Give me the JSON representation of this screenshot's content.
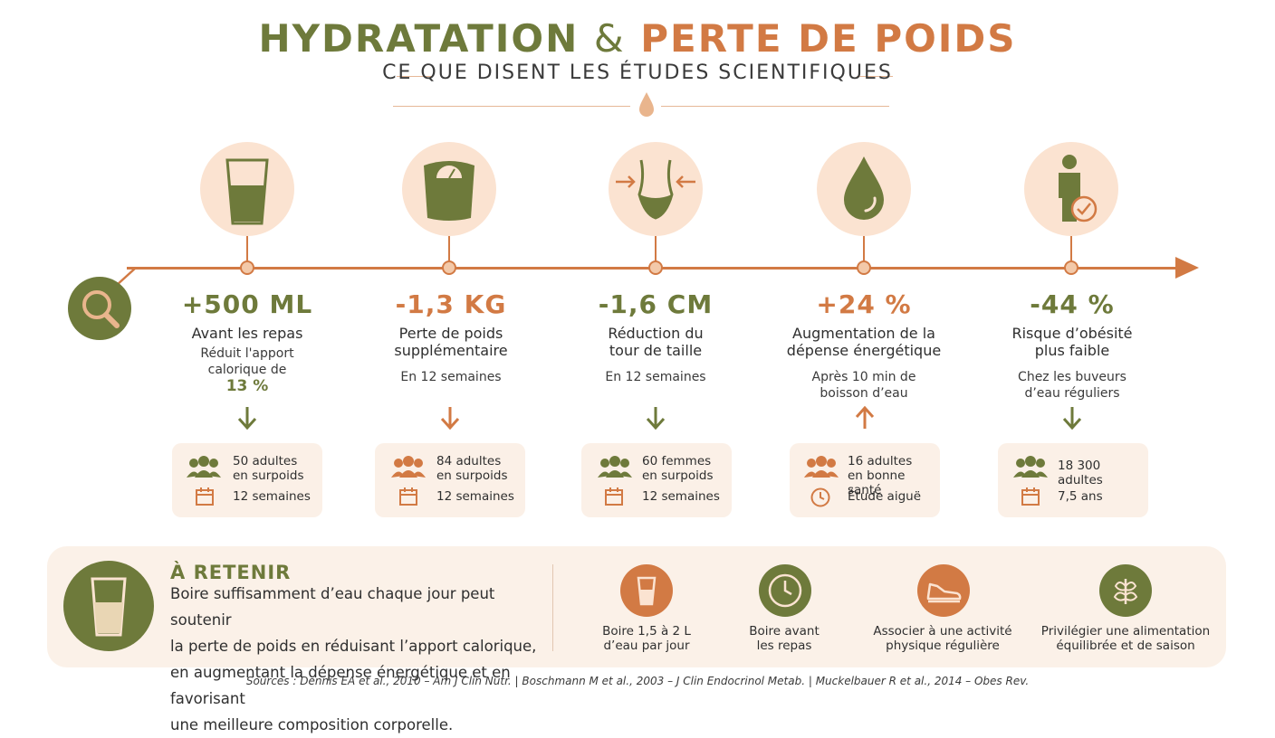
{
  "header": {
    "title_part1": "HYDRATATION",
    "title_amp": "&",
    "title_part2": "PERTE DE POIDS",
    "subtitle": "CE QUE DISENT LES ÉTUDES SCIENTIFIQUES"
  },
  "colors": {
    "olive": "#6e7a3b",
    "orange": "#d27a44",
    "peach": "#fbe3d1",
    "cream": "#fbf1e8"
  },
  "studies": [
    {
      "icon": "water-glass-icon",
      "stat": "+500 ML",
      "label": "Avant les repas",
      "desc_line1": "Réduit l'apport",
      "desc_line2": "calorique de",
      "desc_highlight": "13 %",
      "arrow": "down",
      "card_line1": "50 adultes",
      "card_line2": "en surpoids",
      "card_line3": "12 semaines",
      "card_icon2": "calendar-icon"
    },
    {
      "icon": "scale-icon",
      "stat": "-1,3 KG",
      "label_line1": "Perte de poids",
      "label_line2": "supplémentaire",
      "desc": "En 12 semaines",
      "arrow": "down",
      "card_line1": "84 adultes",
      "card_line2": "en surpoids",
      "card_line3": "12 semaines",
      "card_icon2": "calendar-icon"
    },
    {
      "icon": "waist-icon",
      "stat": "-1,6 CM",
      "label_line1": "Réduction du",
      "label_line2": "tour de taille",
      "desc": "En 12 semaines",
      "arrow": "down",
      "card_line1": "60 femmes",
      "card_line2": "en surpoids",
      "card_line3": "12 semaines",
      "card_icon2": "calendar-icon"
    },
    {
      "icon": "water-drop-icon",
      "stat": "+24 %",
      "label_line1": "Augmentation de la",
      "label_line2": "dépense énergétique",
      "desc_line1": "Après 10 min de",
      "desc_line2": "boisson d’eau",
      "arrow": "up",
      "card_line1": "16 adultes",
      "card_line2": "en bonne santé",
      "card_line3": "Étude aiguë",
      "card_icon2": "clock-icon"
    },
    {
      "icon": "person-check-icon",
      "stat": "-44 %",
      "label_line1": "Risque d’obésité",
      "label_line2": "plus faible",
      "desc_line1": "Chez les buveurs",
      "desc_line2": "d’eau réguliers",
      "arrow": "down",
      "card_line1": "18 300 adultes",
      "card_line3": "7,5 ans",
      "card_icon2": "calendar-icon"
    }
  ],
  "retenir": {
    "title": "À RETENIR",
    "line1": "Boire suffisamment d’eau chaque jour peut soutenir",
    "line2": "la perte de poids en réduisant l’apport calorique,",
    "line3": "en augmentant la dépense énergétique et en favorisant",
    "line4": "une meilleure composition corporelle."
  },
  "tips": [
    {
      "icon": "glass-icon",
      "line1": "Boire 1,5 à 2 L",
      "line2": "d’eau par jour"
    },
    {
      "icon": "clock-icon",
      "line1": "Boire avant",
      "line2": "les repas"
    },
    {
      "icon": "sneaker-icon",
      "line1": "Associer à une activité",
      "line2": "physique régulière"
    },
    {
      "icon": "leaf-icon",
      "line1": "Privilégier une alimentation",
      "line2": "équilibrée et de saison"
    }
  ],
  "sources": "Sources : Dennis EA et al., 2010 – Am J Clin Nutr. | Boschmann M et al., 2003 – J Clin Endocrinol Metab. | Muckelbauer R et al., 2014 – Obes Rev."
}
